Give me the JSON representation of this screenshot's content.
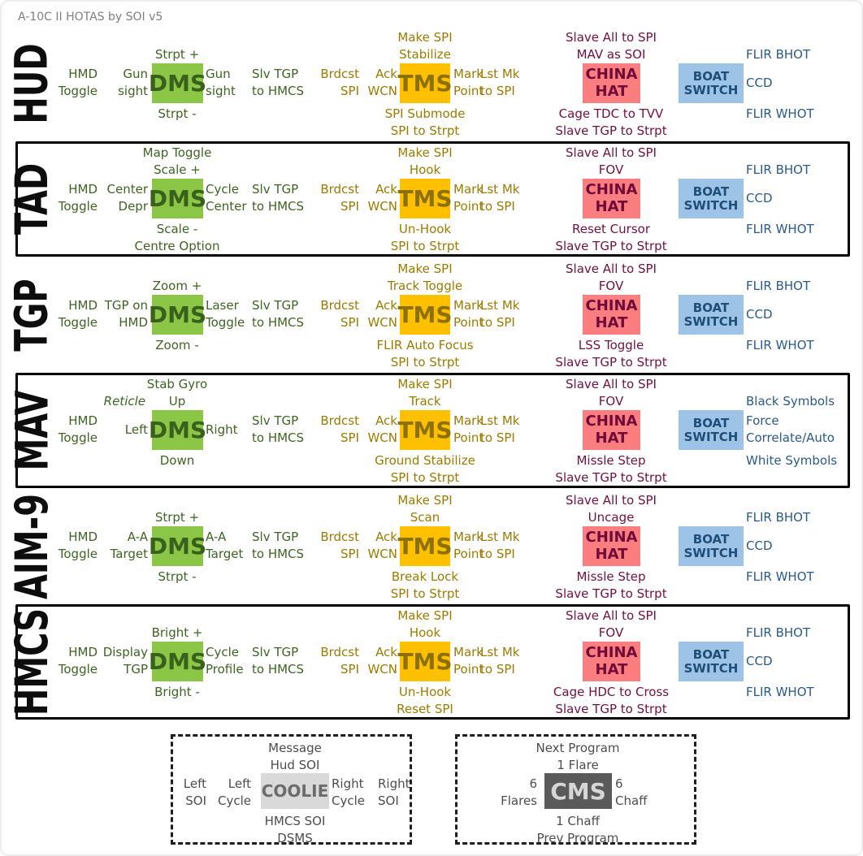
{
  "title": "A-10C II HOTAS by SOI v5",
  "colors": {
    "dms_bg": "#8cc646",
    "dms_text": "#39611c",
    "tms_bg": "#ffc000",
    "tms_text": "#8d7100",
    "china_bg": "#fa7d80",
    "china_text": "#6f0b3a",
    "boat_bg": "#9dc3e6",
    "boat_text": "#1f4e79",
    "coolie_bg": "#d9d9d9",
    "coolie_text": "#6b6b6b",
    "cms_bg": "#5a5a5a",
    "cms_text": "#d6d6d6",
    "green_label": "#3e6422",
    "gold_label": "#9c7b00",
    "maroon_label": "#740f3f",
    "blue_label": "#2a5a8c"
  },
  "boxes": {
    "dms": "DMS",
    "tms": "TMS",
    "china": [
      "CHINA",
      "HAT"
    ],
    "boat": [
      "BOAT",
      "SWITCH"
    ],
    "coolie": "COOLIE",
    "cms": "CMS"
  },
  "common": {
    "hmd": [
      "HMD",
      "Toggle"
    ],
    "slv": [
      "Slv TGP",
      "to HMCS"
    ],
    "brdcst": [
      "Brdcst",
      "SPI"
    ],
    "ack": [
      "Ack",
      "WCN"
    ],
    "mark": [
      "Mark",
      "Point"
    ],
    "lstmk": [
      "Lst Mk",
      "to SPI"
    ]
  },
  "rows": [
    {
      "label": "HUD",
      "bordered": false,
      "dms": {
        "top": [
          "Strpt +"
        ],
        "left": [
          "Gun",
          "sight"
        ],
        "right": [
          "Gun",
          "sight"
        ],
        "bottom": [
          "Strpt -"
        ]
      },
      "tms": {
        "top": [
          "Make SPI",
          "Stabilize"
        ],
        "bottom": [
          "SPI Submode",
          "SPI to Strpt"
        ]
      },
      "china": {
        "top": [
          "Slave All to SPI",
          "MAV as SOI"
        ],
        "bottom": [
          "Cage TDC to TVV",
          "Slave TGP to Strpt"
        ]
      },
      "boat": [
        "FLIR BHOT",
        "CCD",
        "FLIR WHOT"
      ]
    },
    {
      "label": "TAD",
      "bordered": true,
      "dms": {
        "top": [
          "Map Toggle",
          "Scale +"
        ],
        "left": [
          "Center",
          "Depr"
        ],
        "right": [
          "Cycle",
          "Center"
        ],
        "bottom": [
          "Scale -",
          "Centre Option"
        ]
      },
      "tms": {
        "top": [
          "Make SPI",
          "Hook"
        ],
        "bottom": [
          "Un-Hook",
          "SPI to Strpt"
        ]
      },
      "china": {
        "top": [
          "Slave All to SPI",
          "FOV"
        ],
        "bottom": [
          "Reset Cursor",
          "Slave TGP to Strpt"
        ]
      },
      "boat": [
        "FLIR BHOT",
        "CCD",
        "FLIR WHOT"
      ]
    },
    {
      "label": "TGP",
      "bordered": false,
      "dms": {
        "top": [
          "Zoom +"
        ],
        "left": [
          "TGP on",
          "HMD"
        ],
        "right": [
          "Laser",
          "Toggle"
        ],
        "bottom": [
          "Zoom -"
        ]
      },
      "tms": {
        "top": [
          "Make SPI",
          "Track Toggle"
        ],
        "bottom": [
          "FLIR Auto Focus",
          "SPI to Strpt"
        ]
      },
      "china": {
        "top": [
          "Slave All to SPI",
          "FOV"
        ],
        "bottom": [
          "LSS Toggle",
          "Slave TGP to Strpt"
        ]
      },
      "boat": [
        "FLIR BHOT",
        "CCD",
        "FLIR WHOT"
      ]
    },
    {
      "label": "MAV",
      "bordered": true,
      "dms": {
        "top": [
          "Stab Gyro",
          "Up"
        ],
        "note": "Reticle",
        "left": [
          "Left"
        ],
        "right": [
          "Right"
        ],
        "bottom": [
          "Down"
        ]
      },
      "tms": {
        "top": [
          "Make SPI",
          "Track"
        ],
        "bottom": [
          "Ground Stabilize",
          "SPI to Strpt"
        ]
      },
      "china": {
        "top": [
          "Slave All to SPI",
          "FOV"
        ],
        "bottom": [
          "Missle Step",
          "Slave TGP to Strpt"
        ]
      },
      "boat": [
        "Black Symbols",
        "Force",
        "Correlate/Auto",
        "White Symbols"
      ]
    },
    {
      "label": "AIM-9",
      "bordered": false,
      "dms": {
        "top": [
          "Strpt +"
        ],
        "left": [
          "A-A",
          "Target"
        ],
        "right": [
          "A-A",
          "Target"
        ],
        "bottom": [
          "Strpt -"
        ]
      },
      "tms": {
        "top": [
          "Make SPI",
          "Scan"
        ],
        "bottom": [
          "Break Lock",
          "SPI to Strpt"
        ]
      },
      "china": {
        "top": [
          "Slave All to SPI",
          "Uncage"
        ],
        "bottom": [
          "Missle Step",
          "Slave TGP to Strpt"
        ]
      },
      "boat": [
        "FLIR BHOT",
        "CCD",
        "FLIR WHOT"
      ]
    },
    {
      "label": "HMCS",
      "bordered": true,
      "dms": {
        "top": [
          "Bright +"
        ],
        "left": [
          "Display",
          "TGP"
        ],
        "right": [
          "Cycle",
          "Profile"
        ],
        "bottom": [
          "Bright -"
        ]
      },
      "tms": {
        "top": [
          "Make SPI",
          "Hook"
        ],
        "bottom": [
          "Un-Hook",
          "Reset SPI"
        ]
      },
      "china": {
        "top": [
          "Slave All to SPI",
          "FOV"
        ],
        "bottom": [
          "Cage HDC to Cross",
          "Slave TGP to Strpt"
        ]
      },
      "boat": [
        "FLIR BHOT",
        "CCD",
        "FLIR WHOT"
      ]
    }
  ],
  "coolie": {
    "top": [
      "Message",
      "Hud SOI"
    ],
    "left_outer": [
      "Left",
      "SOI"
    ],
    "left_inner": [
      "Left",
      "Cycle"
    ],
    "right_inner": [
      "Right",
      "Cycle"
    ],
    "right_outer": [
      "Right",
      "SOI"
    ],
    "bottom": [
      "HMCS SOI",
      "DSMS"
    ]
  },
  "cms": {
    "top": [
      "Next Program",
      "1 Flare"
    ],
    "left": [
      "6",
      "Flares"
    ],
    "right": [
      "6",
      "Chaff"
    ],
    "bottom": [
      "1 Chaff",
      "Prev Program"
    ]
  }
}
